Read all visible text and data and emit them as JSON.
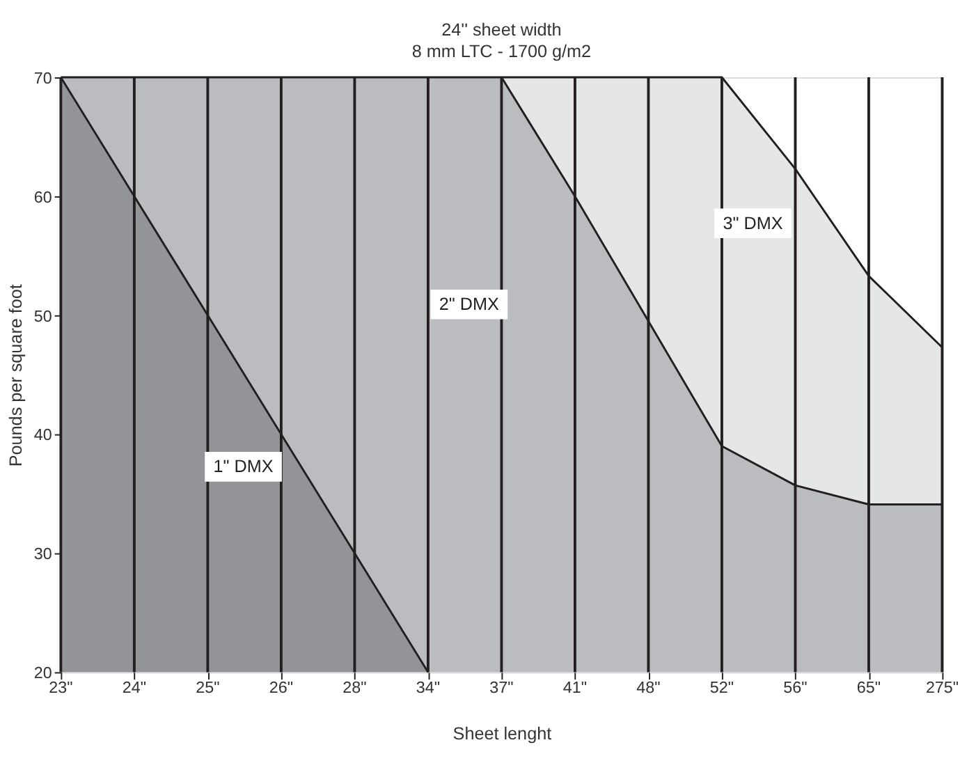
{
  "chart_data": {
    "type": "area",
    "title": "24'' sheet width",
    "subtitle": "8 mm LTC - 1700 g/m2",
    "xlabel": "Sheet lenght",
    "ylabel": "Pounds per square foot",
    "categories": [
      "23\"",
      "24\"",
      "25\"",
      "26\"",
      "28\"",
      "34\"",
      "37\"",
      "41\"",
      "48\"",
      "52\"",
      "56\"",
      "65\"",
      "275\""
    ],
    "series": [
      {
        "name": "1\" DMX",
        "color": "#939497",
        "values": [
          70,
          60,
          50,
          40,
          30,
          20,
          null,
          null,
          null,
          null,
          null,
          null,
          null
        ]
      },
      {
        "name": "2\" DMX",
        "color": "#bbbcbf",
        "values": [
          70,
          70,
          70,
          70,
          70,
          70,
          70,
          60,
          49.5,
          39,
          35.7,
          34.1,
          34.1
        ]
      },
      {
        "name": "3\" DMX",
        "color": "#e5e6e7",
        "values": [
          null,
          null,
          null,
          null,
          null,
          null,
          70,
          70,
          70,
          70,
          62.3,
          53.3,
          47.3
        ]
      }
    ],
    "ylim": [
      20,
      70
    ],
    "yticks": [
      20,
      30,
      40,
      50,
      60,
      70
    ],
    "grid": "x",
    "legend": false
  }
}
